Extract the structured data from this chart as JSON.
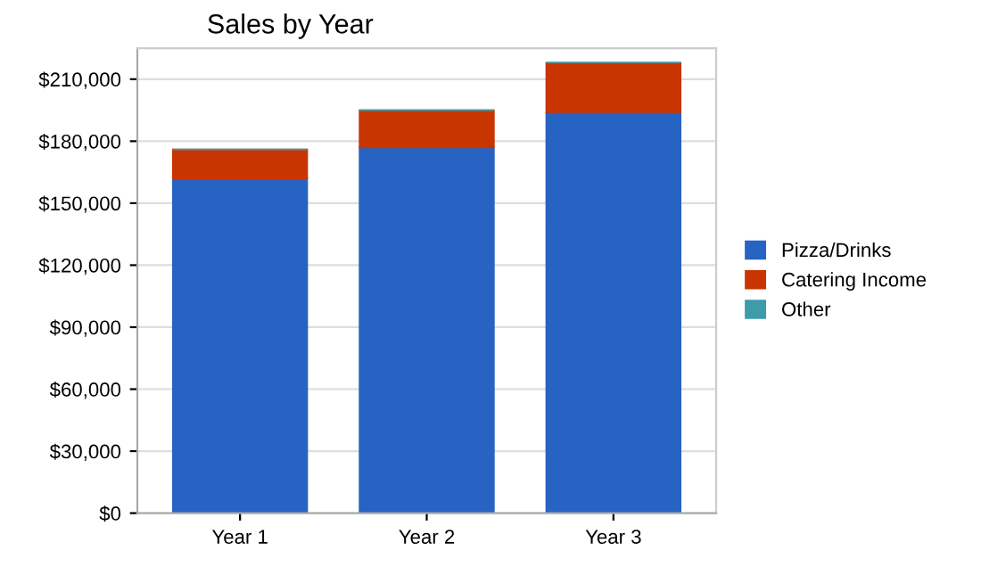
{
  "chart_data": {
    "type": "bar",
    "title": "Sales by Year",
    "categories": [
      "Year 1",
      "Year 2",
      "Year 3"
    ],
    "stacked": true,
    "series": [
      {
        "name": "Pizza/Drinks",
        "color": "#2763c2",
        "values": [
          162000,
          177000,
          194000
        ]
      },
      {
        "name": "Catering Income",
        "color": "#c83500",
        "values": [
          14000,
          18000,
          24000
        ]
      },
      {
        "name": "Other",
        "color": "#3e9baa",
        "values": [
          0,
          0,
          0
        ]
      }
    ],
    "ylim": [
      0,
      225000
    ],
    "yticks": [
      {
        "value": 0,
        "label": "$0"
      },
      {
        "value": 30000,
        "label": "$30,000"
      },
      {
        "value": 60000,
        "label": "$60,000"
      },
      {
        "value": 90000,
        "label": "$90,000"
      },
      {
        "value": 120000,
        "label": "$120,000"
      },
      {
        "value": 150000,
        "label": "$150,000"
      },
      {
        "value": 180000,
        "label": "$180,000"
      },
      {
        "value": 210000,
        "label": "$210,000"
      }
    ],
    "grid": "y",
    "legend": "right"
  }
}
